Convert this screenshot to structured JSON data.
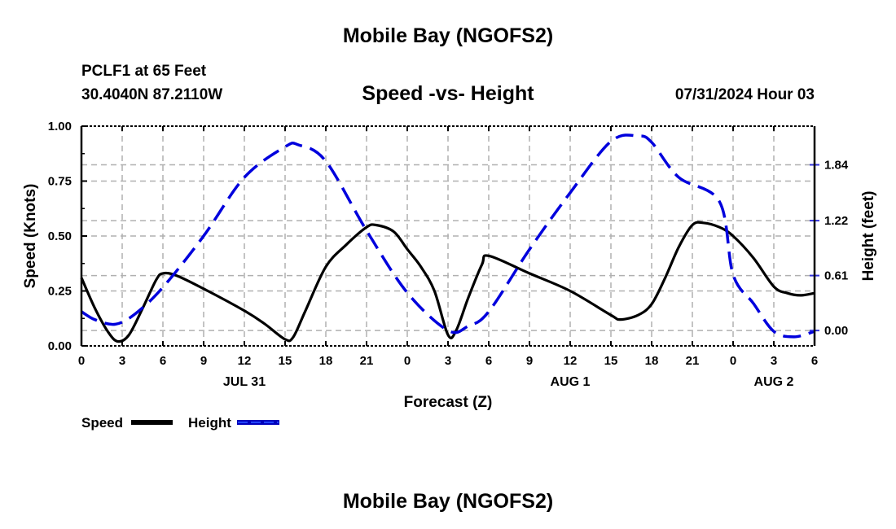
{
  "title_top": "Mobile Bay (NGOFS2)",
  "title_bottom": "Mobile Bay (NGOFS2)",
  "station": "PCLF1 at 65 Feet",
  "location": "30.4040N  87.2110W",
  "datetime": "07/31/2024 Hour 03",
  "chart_data": {
    "type": "line",
    "title": "Speed -vs- Height",
    "xlabel": "Forecast (Z)",
    "ylabel": "Speed (Knots)",
    "y2label": "Height (feet)",
    "xlim": [
      0,
      54
    ],
    "ylim": [
      0,
      1.0
    ],
    "y2_zero_offset_knots": 0.07,
    "y2_scale_ft_per_knot": 2.44,
    "x_tick_labels": [
      "0",
      "3",
      "6",
      "9",
      "12",
      "15",
      "18",
      "21",
      "0",
      "3",
      "6",
      "9",
      "12",
      "15",
      "18",
      "21",
      "0",
      "3",
      "6"
    ],
    "y_ticks": [
      0.0,
      0.25,
      0.5,
      0.75,
      1.0
    ],
    "y_tick_labels": [
      "0.00",
      "0.25",
      "0.50",
      "0.75",
      "1.00"
    ],
    "y2_ticks": [
      0.0,
      0.61,
      1.22,
      1.84
    ],
    "y2_tick_labels": [
      "0.00",
      "0.61",
      "1.22",
      "1.84"
    ],
    "date_labels": [
      {
        "hour": 12,
        "label": "JUL 31"
      },
      {
        "hour": 36,
        "label": "AUG 1"
      },
      {
        "hour": 51,
        "label": "AUG 2"
      }
    ],
    "grid": true,
    "legend": {
      "position": "bottom-left",
      "entries": [
        "Speed",
        "Height"
      ]
    },
    "colors": {
      "speed": "#000000",
      "height": "#0000dd",
      "grid": "#b0b0b0"
    },
    "series": [
      {
        "name": "Speed",
        "axis": "left",
        "x": [
          0,
          1,
          2,
          2.7,
          3.5,
          4.5,
          5.5,
          6,
          7,
          9,
          12,
          13.5,
          15,
          15.6,
          16.5,
          18,
          19.5,
          21,
          21.7,
          23,
          24,
          25,
          26,
          27,
          27.6,
          28.5,
          29.5,
          30,
          33,
          36,
          39,
          39.7,
          41,
          42,
          43,
          44,
          45,
          45.8,
          47,
          48,
          49.5,
          51,
          52,
          53,
          54
        ],
        "y": [
          0.31,
          0.17,
          0.06,
          0.02,
          0.05,
          0.17,
          0.3,
          0.33,
          0.32,
          0.26,
          0.16,
          0.1,
          0.03,
          0.04,
          0.16,
          0.36,
          0.46,
          0.54,
          0.55,
          0.52,
          0.44,
          0.36,
          0.25,
          0.05,
          0.07,
          0.22,
          0.37,
          0.41,
          0.33,
          0.25,
          0.14,
          0.12,
          0.14,
          0.19,
          0.31,
          0.45,
          0.55,
          0.56,
          0.54,
          0.5,
          0.4,
          0.27,
          0.24,
          0.23,
          0.24
        ]
      },
      {
        "name": "Height",
        "axis": "right",
        "x": [
          0,
          1,
          2.5,
          4,
          6,
          9,
          12,
          15,
          16,
          18,
          21,
          24,
          27,
          28.5,
          30,
          33,
          36,
          39,
          41,
          42,
          44,
          47,
          48,
          49.5,
          51,
          52.5,
          54
        ],
        "y": [
          0.21,
          0.12,
          0.07,
          0.19,
          0.48,
          1.05,
          1.7,
          2.04,
          2.06,
          1.88,
          1.11,
          0.42,
          0.0,
          0.05,
          0.21,
          0.9,
          1.53,
          2.1,
          2.16,
          2.09,
          1.7,
          1.43,
          0.62,
          0.3,
          -0.01,
          -0.07,
          -0.01
        ]
      }
    ]
  }
}
